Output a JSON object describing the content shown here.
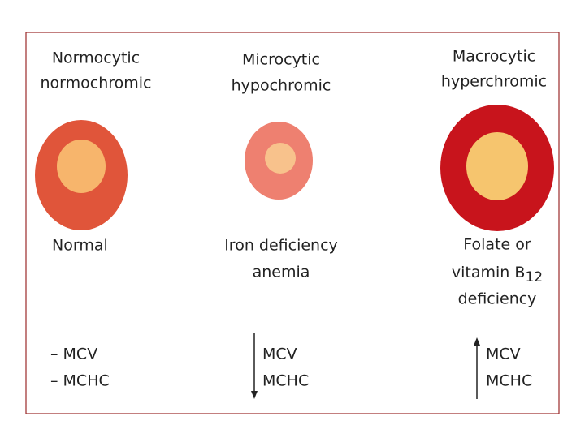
{
  "columns": [
    {
      "title": [
        "Normocytic",
        "normochromic"
      ],
      "cause": [
        "Normal"
      ],
      "indices": [
        "– MCV",
        "– MCHC"
      ]
    },
    {
      "title": [
        "Microcytic",
        "hypochromic"
      ],
      "cause": [
        "Iron deficiency",
        "anemia"
      ],
      "indices": [
        "MCV",
        "MCHC"
      ]
    },
    {
      "title": [
        "Macrocytic",
        "hyperchromic"
      ],
      "cause": [
        "Folate or",
        {
          "text": "vitamin B",
          "sub": "12"
        },
        "deficiency"
      ],
      "indices": [
        "MCV",
        "MCHC"
      ]
    }
  ]
}
